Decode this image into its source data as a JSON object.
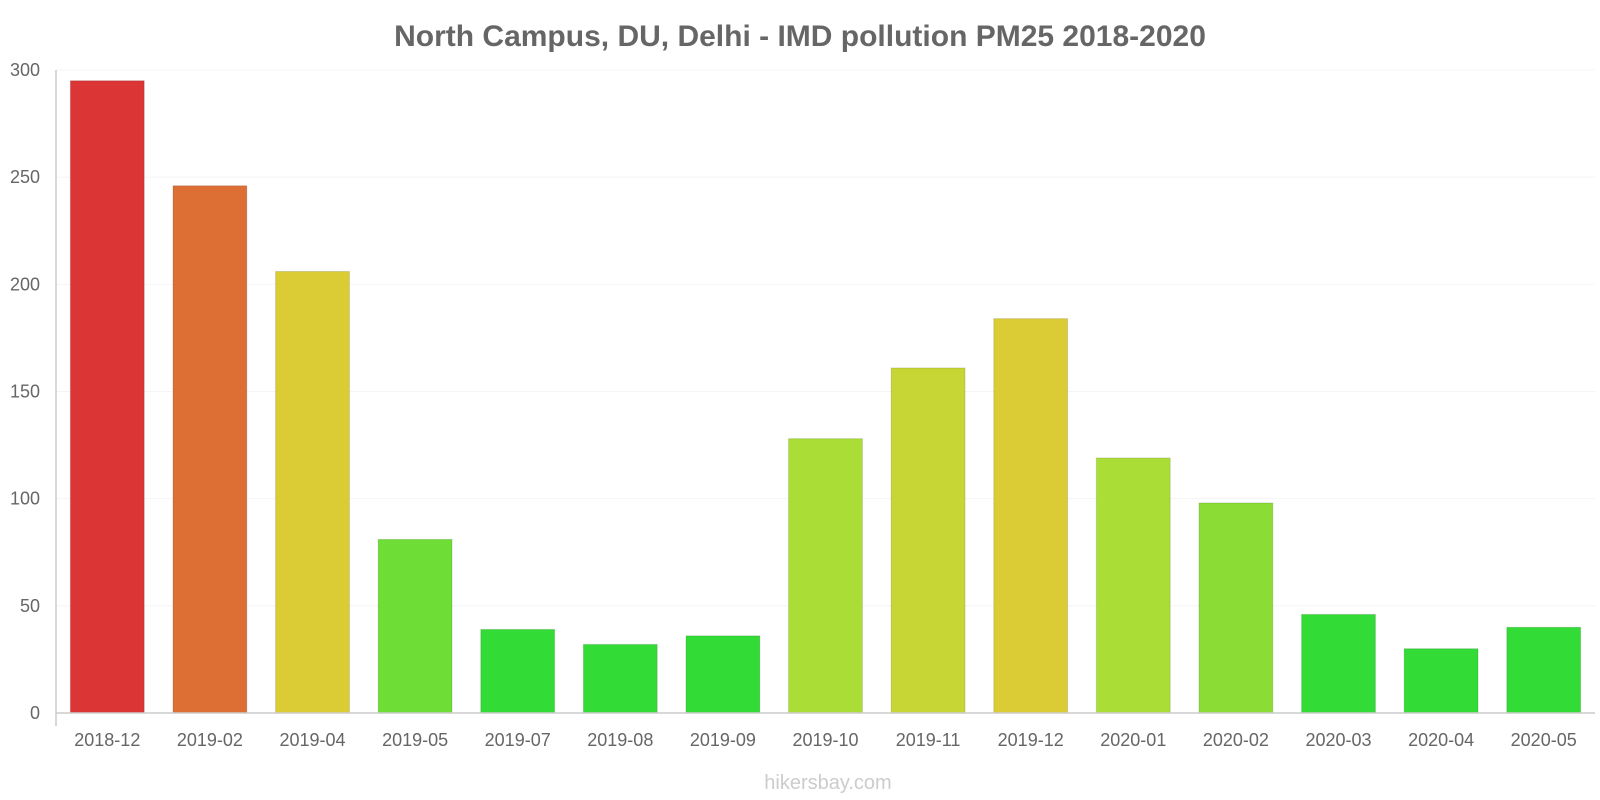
{
  "chart_data": {
    "type": "bar",
    "title": "North Campus, DU, Delhi - IMD pollution PM25 2018-2020",
    "xlabel": "",
    "ylabel": "",
    "ylim": [
      0,
      300
    ],
    "yticks": [
      0,
      50,
      100,
      150,
      200,
      250,
      300
    ],
    "categories": [
      "2018-12",
      "2019-02",
      "2019-04",
      "2019-05",
      "2019-07",
      "2019-08",
      "2019-09",
      "2019-10",
      "2019-11",
      "2019-12",
      "2020-01",
      "2020-02",
      "2020-03",
      "2020-04",
      "2020-05"
    ],
    "values": [
      295,
      246,
      206,
      81,
      39,
      32,
      36,
      128,
      161,
      184,
      119,
      98,
      46,
      30,
      40
    ],
    "colors": [
      "#dc3535",
      "#dd6f35",
      "#dbcb35",
      "#6edd35",
      "#32db35",
      "#32db35",
      "#32db35",
      "#aadd35",
      "#c7d535",
      "#dbcb35",
      "#aadd35",
      "#8bdd35",
      "#32db35",
      "#32db35",
      "#32db35"
    ],
    "grid": true,
    "legend": "none"
  },
  "watermark": "hikersbay.com"
}
